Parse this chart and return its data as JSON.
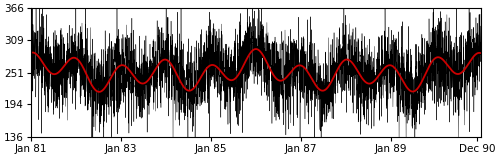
{
  "title": "",
  "ylabel": "",
  "xlabel": "",
  "ylim": [
    136,
    366
  ],
  "yticks": [
    136,
    194,
    251,
    309,
    366
  ],
  "xtick_labels": [
    "Jan 81",
    "Jan 83",
    "Jan 85",
    "Jan 87",
    "Jan 89",
    "Dec 90"
  ],
  "n_years": 10,
  "n_days": 3652,
  "mean_level": 251,
  "annual_amplitude": 22,
  "noise_std": 38,
  "black_line_color": "#000000",
  "red_line_color": "#cc0000",
  "background_color": "#ffffff",
  "red_linewidth": 1.3,
  "black_linewidth": 0.3,
  "seed": 17
}
